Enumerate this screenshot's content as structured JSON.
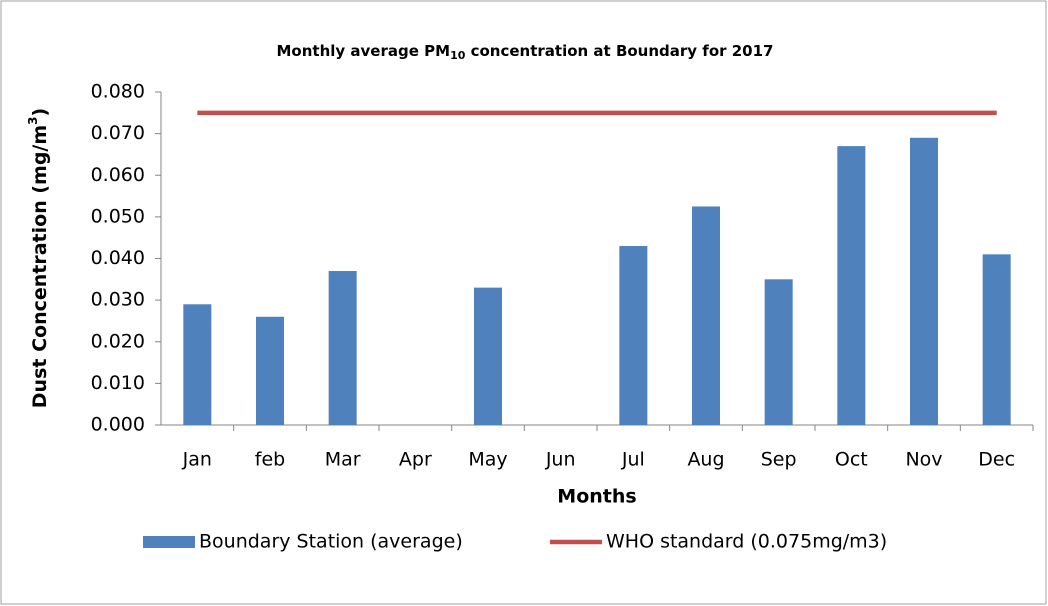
{
  "chart_data": {
    "type": "bar",
    "title": [
      "Monthly average PM",
      "10",
      " concentration at Boundary for 2017"
    ],
    "x_label": "Months",
    "y_label": [
      "Dust Concentration (mg/m",
      "3",
      ")"
    ],
    "categories": [
      "Jan",
      "feb",
      "Mar",
      "Apr",
      "May",
      "Jun",
      "Jul",
      "Aug",
      "Sep",
      "Oct",
      "Nov",
      "Dec"
    ],
    "series": [
      {
        "name": "Boundary Station (average)",
        "type": "bar",
        "color": "#4f81bd",
        "values": [
          0.029,
          0.026,
          0.037,
          null,
          0.033,
          null,
          0.043,
          0.0525,
          0.035,
          0.067,
          0.069,
          0.041
        ]
      },
      {
        "name": "WHO standard (0.075mg/m3)",
        "type": "line",
        "color": "#c0504d",
        "values": [
          0.075,
          0.075,
          0.075,
          0.075,
          0.075,
          0.075,
          0.075,
          0.075,
          0.075,
          0.075,
          0.075,
          0.075
        ]
      }
    ],
    "ylim": [
      0,
      0.08
    ],
    "yticks": [
      {
        "value": 0,
        "label": "0.000"
      },
      {
        "value": 0.01,
        "label": "0.010"
      },
      {
        "value": 0.02,
        "label": "0.020"
      },
      {
        "value": 0.03,
        "label": "0.030"
      },
      {
        "value": 0.04,
        "label": "0.040"
      },
      {
        "value": 0.05,
        "label": "0.050"
      },
      {
        "value": 0.06,
        "label": "0.060"
      },
      {
        "value": 0.07,
        "label": "0.070"
      },
      {
        "value": 0.08,
        "label": "0.080"
      }
    ],
    "legend": "bottom"
  }
}
